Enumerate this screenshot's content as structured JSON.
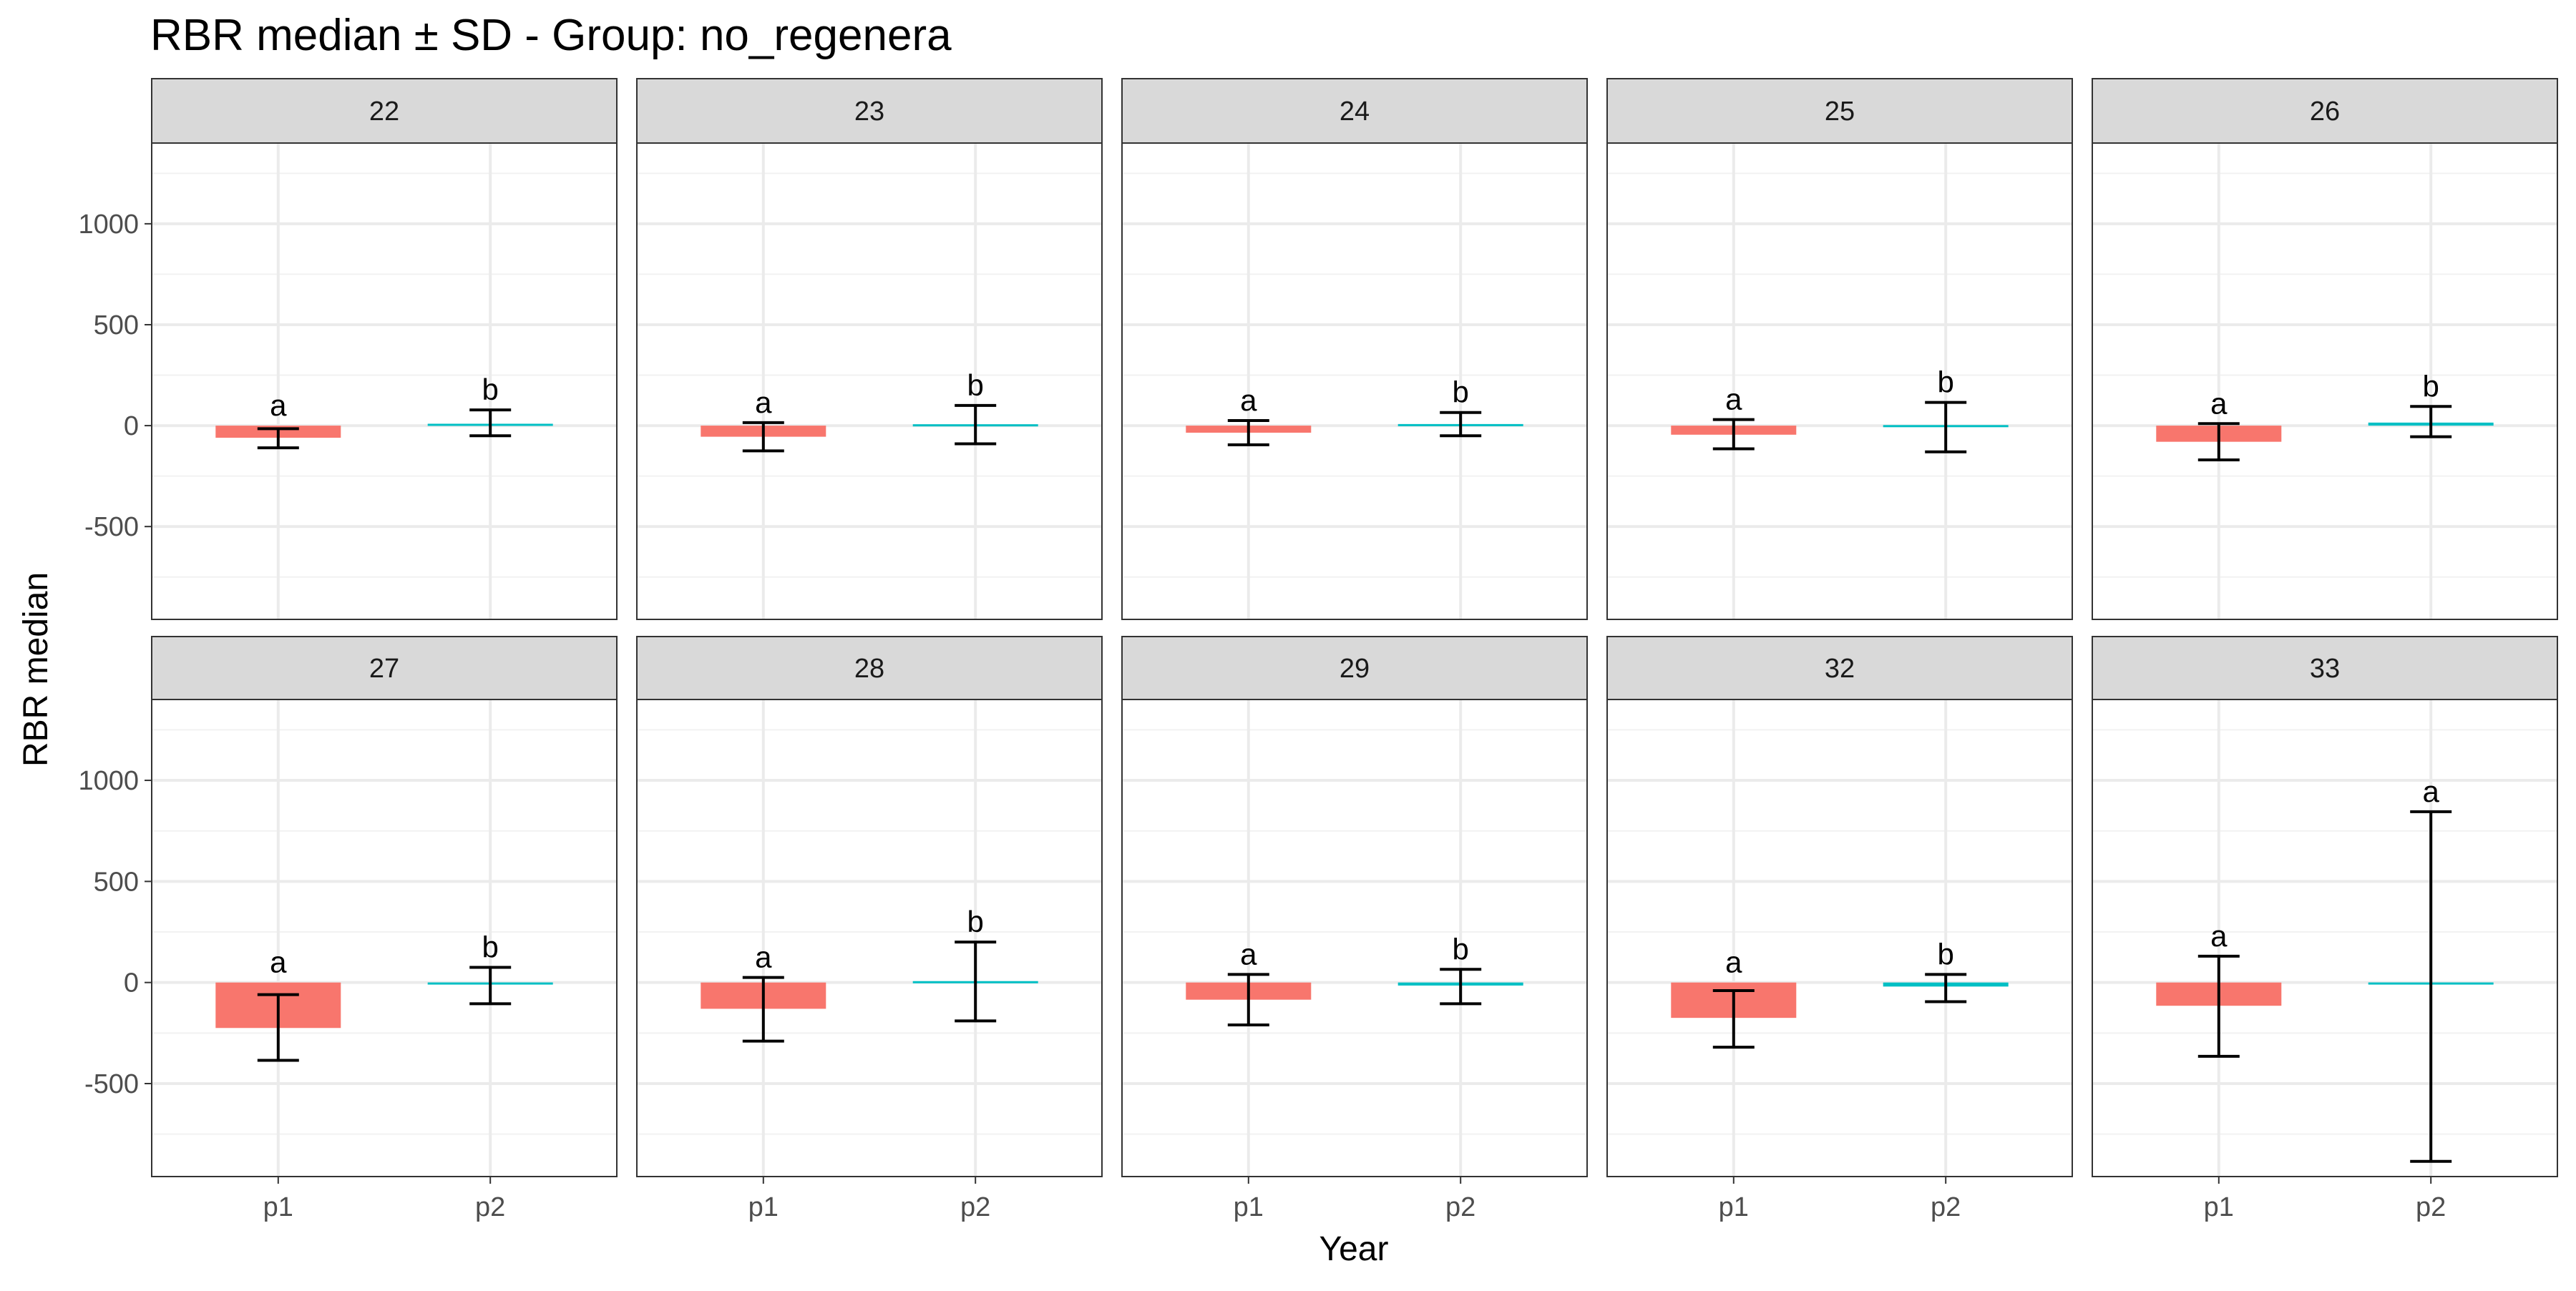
{
  "chart_data": {
    "type": "bar",
    "title": "RBR median ± SD - Group: no_regenera",
    "xlabel": "Year",
    "ylabel": "RBR median",
    "ylim": [
      -960,
      1400
    ],
    "y_ticks": [
      -500,
      0,
      500,
      1000
    ],
    "y_tick_labels": [
      "-500",
      "0",
      "500",
      "1000"
    ],
    "categories": [
      "p1",
      "p2"
    ],
    "colors": {
      "p1": "#F8766D",
      "p2": "#00BFC4"
    },
    "grid": true,
    "legend": "none",
    "panels": [
      {
        "label": "22",
        "bars": [
          {
            "x": "p1",
            "value": -60,
            "sd_low": -110,
            "sd_high": -15,
            "letter": "a"
          },
          {
            "x": "p2",
            "value": 8,
            "sd_low": -50,
            "sd_high": 78,
            "letter": "b"
          }
        ]
      },
      {
        "label": "23",
        "bars": [
          {
            "x": "p1",
            "value": -55,
            "sd_low": -125,
            "sd_high": 15,
            "letter": "a"
          },
          {
            "x": "p2",
            "value": 3,
            "sd_low": -90,
            "sd_high": 100,
            "letter": "b"
          }
        ]
      },
      {
        "label": "24",
        "bars": [
          {
            "x": "p1",
            "value": -35,
            "sd_low": -95,
            "sd_high": 25,
            "letter": "a"
          },
          {
            "x": "p2",
            "value": 5,
            "sd_low": -50,
            "sd_high": 65,
            "letter": "b"
          }
        ]
      },
      {
        "label": "25",
        "bars": [
          {
            "x": "p1",
            "value": -45,
            "sd_low": -115,
            "sd_high": 30,
            "letter": "a"
          },
          {
            "x": "p2",
            "value": -5,
            "sd_low": -130,
            "sd_high": 115,
            "letter": "b"
          }
        ]
      },
      {
        "label": "26",
        "bars": [
          {
            "x": "p1",
            "value": -80,
            "sd_low": -170,
            "sd_high": 10,
            "letter": "a"
          },
          {
            "x": "p2",
            "value": 15,
            "sd_low": -55,
            "sd_high": 95,
            "letter": "b"
          }
        ]
      },
      {
        "label": "27",
        "bars": [
          {
            "x": "p1",
            "value": -225,
            "sd_low": -385,
            "sd_high": -60,
            "letter": "a"
          },
          {
            "x": "p2",
            "value": -10,
            "sd_low": -105,
            "sd_high": 75,
            "letter": "b"
          }
        ]
      },
      {
        "label": "28",
        "bars": [
          {
            "x": "p1",
            "value": -130,
            "sd_low": -290,
            "sd_high": 25,
            "letter": "a"
          },
          {
            "x": "p2",
            "value": 3,
            "sd_low": -190,
            "sd_high": 200,
            "letter": "b"
          }
        ]
      },
      {
        "label": "29",
        "bars": [
          {
            "x": "p1",
            "value": -85,
            "sd_low": -210,
            "sd_high": 40,
            "letter": "a"
          },
          {
            "x": "p2",
            "value": -15,
            "sd_low": -105,
            "sd_high": 65,
            "letter": "b"
          }
        ]
      },
      {
        "label": "32",
        "bars": [
          {
            "x": "p1",
            "value": -175,
            "sd_low": -320,
            "sd_high": -40,
            "letter": "a"
          },
          {
            "x": "p2",
            "value": -20,
            "sd_low": -95,
            "sd_high": 40,
            "letter": "b"
          }
        ]
      },
      {
        "label": "33",
        "bars": [
          {
            "x": "p1",
            "value": -115,
            "sd_low": -365,
            "sd_high": 130,
            "letter": "a"
          },
          {
            "x": "p2",
            "value": -10,
            "sd_low": -885,
            "sd_high": 845,
            "letter": "a"
          }
        ]
      }
    ]
  }
}
